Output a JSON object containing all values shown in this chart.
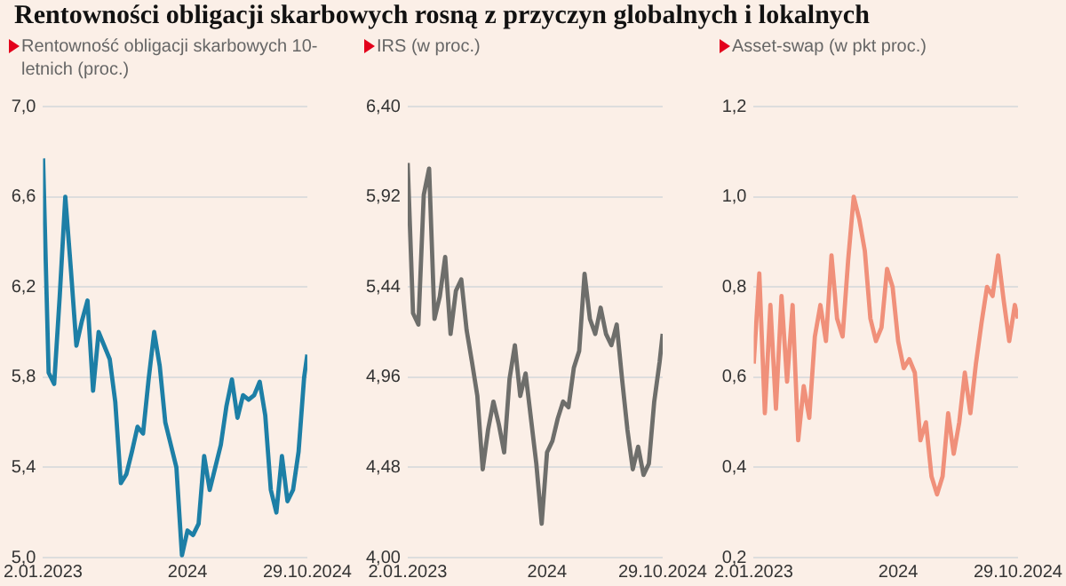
{
  "chart_data": [
    {
      "type": "line",
      "title": "Rentowności obligacji skarbowych rosną z przyczyn globalnych i lokalnych",
      "subtitle": "Rentowność obligacji skarbowych 10-letnich (proc.)",
      "x": [
        "2023-01-02",
        "2023-01-16",
        "2023-01-30",
        "2023-02-13",
        "2023-02-27",
        "2023-03-13",
        "2023-03-27",
        "2023-04-10",
        "2023-04-24",
        "2023-05-08",
        "2023-05-22",
        "2023-06-05",
        "2023-06-19",
        "2023-07-03",
        "2023-07-17",
        "2023-07-31",
        "2023-08-14",
        "2023-08-28",
        "2023-09-11",
        "2023-09-25",
        "2023-10-09",
        "2023-10-23",
        "2023-11-06",
        "2023-11-20",
        "2023-12-04",
        "2023-12-18",
        "2024-01-01",
        "2024-01-15",
        "2024-01-29",
        "2024-02-12",
        "2024-02-26",
        "2024-03-11",
        "2024-03-25",
        "2024-04-08",
        "2024-04-22",
        "2024-05-06",
        "2024-05-20",
        "2024-06-03",
        "2024-06-17",
        "2024-07-01",
        "2024-07-15",
        "2024-07-29",
        "2024-08-12",
        "2024-08-26",
        "2024-09-09",
        "2024-09-23",
        "2024-10-07",
        "2024-10-21",
        "2024-10-29"
      ],
      "series": [
        {
          "color": "#1d7fa6",
          "values": [
            6.77,
            5.82,
            5.77,
            6.16,
            6.6,
            6.28,
            5.94,
            6.05,
            6.14,
            5.74,
            6.0,
            5.94,
            5.88,
            5.69,
            5.33,
            5.37,
            5.47,
            5.58,
            5.55,
            5.79,
            6.0,
            5.85,
            5.6,
            5.5,
            5.4,
            5.01,
            5.12,
            5.1,
            5.15,
            5.45,
            5.3,
            5.4,
            5.5,
            5.67,
            5.79,
            5.62,
            5.72,
            5.7,
            5.72,
            5.78,
            5.63,
            5.3,
            5.2,
            5.45,
            5.25,
            5.3,
            5.47,
            5.8,
            5.9
          ]
        }
      ],
      "xlim": [
        "2023-01-02",
        "2024-10-29"
      ],
      "xticks": [
        {
          "value": "2023-01-02",
          "label": "2.01.2023"
        },
        {
          "value": "2024-01-01",
          "label": "2024"
        },
        {
          "value": "2024-10-29",
          "label": "29.10.2024"
        }
      ],
      "ylim": [
        5.0,
        7.0
      ],
      "yticks": [
        {
          "value": 5.0,
          "label": "5,0"
        },
        {
          "value": 5.4,
          "label": "5,4"
        },
        {
          "value": 5.8,
          "label": "5,8"
        },
        {
          "value": 6.2,
          "label": "6,2"
        },
        {
          "value": 6.6,
          "label": "6,6"
        },
        {
          "value": 7.0,
          "label": "7,0"
        }
      ],
      "grid": "y",
      "marker": "none"
    },
    {
      "type": "line",
      "subtitle": "IRS (w proc.)",
      "x": [
        "2023-01-02",
        "2023-01-16",
        "2023-01-30",
        "2023-02-13",
        "2023-02-27",
        "2023-03-13",
        "2023-03-27",
        "2023-04-10",
        "2023-04-24",
        "2023-05-08",
        "2023-05-22",
        "2023-06-05",
        "2023-06-19",
        "2023-07-03",
        "2023-07-17",
        "2023-07-31",
        "2023-08-14",
        "2023-08-28",
        "2023-09-11",
        "2023-09-25",
        "2023-10-09",
        "2023-10-23",
        "2023-11-06",
        "2023-11-20",
        "2023-12-04",
        "2023-12-18",
        "2024-01-01",
        "2024-01-15",
        "2024-01-29",
        "2024-02-12",
        "2024-02-26",
        "2024-03-11",
        "2024-03-25",
        "2024-04-08",
        "2024-04-22",
        "2024-05-06",
        "2024-05-20",
        "2024-06-03",
        "2024-06-17",
        "2024-07-01",
        "2024-07-15",
        "2024-07-29",
        "2024-08-12",
        "2024-08-26",
        "2024-09-09",
        "2024-09-23",
        "2024-10-07",
        "2024-10-21",
        "2024-10-29"
      ],
      "series": [
        {
          "color": "#6e6e6b",
          "values": [
            6.1,
            5.3,
            5.24,
            5.93,
            6.07,
            5.27,
            5.39,
            5.6,
            5.19,
            5.42,
            5.48,
            5.21,
            5.04,
            4.86,
            4.47,
            4.68,
            4.83,
            4.71,
            4.56,
            4.95,
            5.13,
            4.86,
            4.98,
            4.74,
            4.5,
            4.18,
            4.56,
            4.62,
            4.74,
            4.83,
            4.8,
            5.01,
            5.1,
            5.51,
            5.27,
            5.19,
            5.33,
            5.19,
            5.13,
            5.24,
            4.95,
            4.68,
            4.47,
            4.59,
            4.44,
            4.5,
            4.83,
            5.04,
            5.19
          ]
        }
      ],
      "xlim": [
        "2023-01-02",
        "2024-10-29"
      ],
      "xticks": [
        {
          "value": "2023-01-02",
          "label": "2.01.2023"
        },
        {
          "value": "2024-01-01",
          "label": "2024"
        },
        {
          "value": "2024-10-29",
          "label": "29.10.2024"
        }
      ],
      "ylim": [
        4.0,
        6.4
      ],
      "yticks": [
        {
          "value": 4.0,
          "label": "4,00"
        },
        {
          "value": 4.48,
          "label": "4,48"
        },
        {
          "value": 4.96,
          "label": "4,96"
        },
        {
          "value": 5.44,
          "label": "5,44"
        },
        {
          "value": 5.92,
          "label": "5,92"
        },
        {
          "value": 6.4,
          "label": "6,40"
        }
      ],
      "grid": "y",
      "marker": "none"
    },
    {
      "type": "line",
      "subtitle": "Asset-swap (w pkt proc.)",
      "x": [
        "2023-01-02",
        "2023-01-16",
        "2023-01-30",
        "2023-02-13",
        "2023-02-27",
        "2023-03-13",
        "2023-03-27",
        "2023-04-10",
        "2023-04-24",
        "2023-05-08",
        "2023-05-22",
        "2023-06-05",
        "2023-06-19",
        "2023-07-03",
        "2023-07-17",
        "2023-07-31",
        "2023-08-14",
        "2023-08-28",
        "2023-09-11",
        "2023-09-25",
        "2023-10-09",
        "2023-10-23",
        "2023-11-06",
        "2023-11-20",
        "2023-12-04",
        "2023-12-18",
        "2024-01-01",
        "2024-01-15",
        "2024-01-29",
        "2024-02-12",
        "2024-02-26",
        "2024-03-11",
        "2024-03-25",
        "2024-04-08",
        "2024-04-22",
        "2024-05-06",
        "2024-05-20",
        "2024-06-03",
        "2024-06-17",
        "2024-07-01",
        "2024-07-15",
        "2024-07-29",
        "2024-08-12",
        "2024-08-26",
        "2024-09-09",
        "2024-09-23",
        "2024-10-07",
        "2024-10-21",
        "2024-10-29"
      ],
      "series": [
        {
          "color": "#f0907a",
          "values": [
            0.63,
            0.83,
            0.52,
            0.76,
            0.53,
            0.78,
            0.59,
            0.76,
            0.46,
            0.58,
            0.51,
            0.69,
            0.76,
            0.68,
            0.87,
            0.73,
            0.69,
            0.86,
            1.0,
            0.95,
            0.88,
            0.73,
            0.68,
            0.71,
            0.84,
            0.8,
            0.68,
            0.62,
            0.64,
            0.61,
            0.46,
            0.5,
            0.38,
            0.34,
            0.38,
            0.52,
            0.43,
            0.5,
            0.61,
            0.52,
            0.63,
            0.72,
            0.8,
            0.78,
            0.87,
            0.77,
            0.68,
            0.76,
            0.73
          ]
        }
      ],
      "xlim": [
        "2023-01-02",
        "2024-10-29"
      ],
      "xticks": [
        {
          "value": "2023-01-02",
          "label": "2.01.2023"
        },
        {
          "value": "2024-01-01",
          "label": "2024"
        },
        {
          "value": "2024-10-29",
          "label": "29.10.2024"
        }
      ],
      "ylim": [
        0.2,
        1.2
      ],
      "yticks": [
        {
          "value": 0.2,
          "label": "0,2"
        },
        {
          "value": 0.4,
          "label": "0,4"
        },
        {
          "value": 0.6,
          "label": "0,6"
        },
        {
          "value": 0.8,
          "label": "0,8"
        },
        {
          "value": 1.0,
          "label": "1,0"
        },
        {
          "value": 1.2,
          "label": "1,2"
        }
      ],
      "grid": "y",
      "marker": "none"
    }
  ]
}
